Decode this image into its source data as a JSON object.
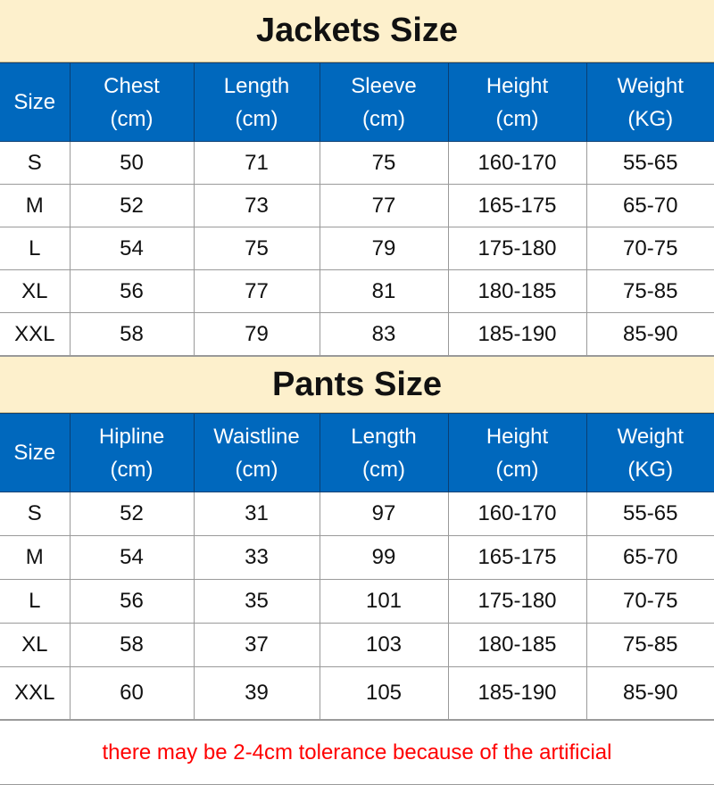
{
  "jackets": {
    "title": "Jackets Size",
    "headers": [
      [
        "Size",
        ""
      ],
      [
        "Chest",
        "(cm)"
      ],
      [
        "Length",
        "(cm)"
      ],
      [
        "Sleeve",
        "(cm)"
      ],
      [
        "Height",
        "(cm)"
      ],
      [
        "Weight",
        "(KG)"
      ]
    ],
    "rows": [
      [
        "S",
        "50",
        "71",
        "75",
        "160-170",
        "55-65"
      ],
      [
        "M",
        "52",
        "73",
        "77",
        "165-175",
        "65-70"
      ],
      [
        "L",
        "54",
        "75",
        "79",
        "175-180",
        "70-75"
      ],
      [
        "XL",
        "56",
        "77",
        "81",
        "180-185",
        "75-85"
      ],
      [
        "XXL",
        "58",
        "79",
        "83",
        "185-190",
        "85-90"
      ]
    ]
  },
  "pants": {
    "title": "Pants Size",
    "headers": [
      [
        "Size",
        ""
      ],
      [
        "Hipline",
        "(cm)"
      ],
      [
        "Waistline",
        "(cm)"
      ],
      [
        "Length",
        "(cm)"
      ],
      [
        "Height",
        "(cm)"
      ],
      [
        "Weight",
        "(KG)"
      ]
    ],
    "rows": [
      [
        "S",
        "52",
        "31",
        "97",
        "160-170",
        "55-65"
      ],
      [
        "M",
        "54",
        "33",
        "99",
        "165-175",
        "65-70"
      ],
      [
        "L",
        "56",
        "35",
        "101",
        "175-180",
        "70-75"
      ],
      [
        "XL",
        "58",
        "37",
        "103",
        "180-185",
        "75-85"
      ],
      [
        "XXL",
        "60",
        "39",
        "105",
        "185-190",
        "85-90"
      ]
    ]
  },
  "footer_note": "there may be 2-4cm tolerance because of the artificial",
  "colors": {
    "header_bg": "#0068bd",
    "title_bg": "#fdf0cc",
    "note": "#ff0000"
  }
}
